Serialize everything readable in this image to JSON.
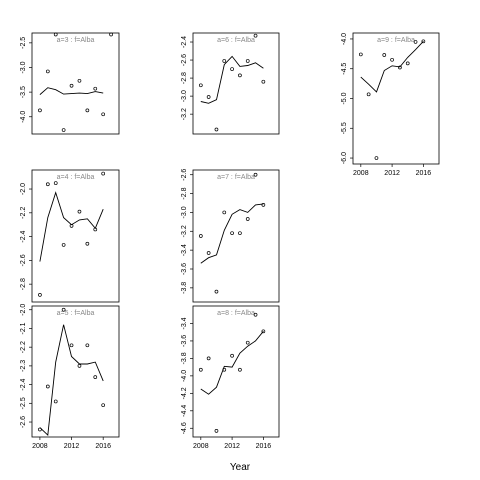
{
  "chart_data": {
    "type": "scatter",
    "xlabel": "Year",
    "panels": [
      {
        "title": "a=3 : f=Alba",
        "xlim": [
          2007,
          2018
        ],
        "ylim": [
          -4.35,
          -2.3
        ],
        "yticks": [
          "-2.5",
          "-3.0",
          "-3.5",
          "-4.0"
        ],
        "ytick_values": [
          -2.5,
          -3.0,
          -3.5,
          -4.0
        ],
        "xticks": [],
        "points": [
          [
            2008,
            -3.87
          ],
          [
            2009,
            -3.08
          ],
          [
            2010,
            -2.33
          ],
          [
            2011,
            -4.27
          ],
          [
            2012,
            -3.37
          ],
          [
            2013,
            -3.27
          ],
          [
            2014,
            -3.87
          ],
          [
            2015,
            -3.43
          ],
          [
            2016,
            -3.95
          ],
          [
            2017,
            -2.33
          ]
        ],
        "line": [
          [
            2008,
            -3.55
          ],
          [
            2009,
            -3.41
          ],
          [
            2010,
            -3.45
          ],
          [
            2011,
            -3.54
          ],
          [
            2012,
            -3.53
          ],
          [
            2013,
            -3.52
          ],
          [
            2014,
            -3.53
          ],
          [
            2015,
            -3.49
          ],
          [
            2016,
            -3.52
          ]
        ]
      },
      {
        "title": "a=6 : f=Alba",
        "xlim": [
          2007,
          2018
        ],
        "ylim": [
          -3.42,
          -2.3
        ],
        "yticks": [
          "-2.4",
          "-2.6",
          "-2.8",
          "-3.0",
          "-3.2"
        ],
        "ytick_values": [
          -2.4,
          -2.6,
          -2.8,
          -3.0,
          -3.2
        ],
        "xticks": [],
        "points": [
          [
            2008,
            -2.88
          ],
          [
            2009,
            -3.01
          ],
          [
            2010,
            -3.37
          ],
          [
            2011,
            -2.61
          ],
          [
            2012,
            -2.7
          ],
          [
            2013,
            -2.77
          ],
          [
            2014,
            -2.61
          ],
          [
            2015,
            -2.33
          ],
          [
            2016,
            -2.84
          ]
        ],
        "line": [
          [
            2008,
            -3.06
          ],
          [
            2009,
            -3.08
          ],
          [
            2010,
            -3.04
          ],
          [
            2011,
            -2.65
          ],
          [
            2012,
            -2.56
          ],
          [
            2013,
            -2.67
          ],
          [
            2014,
            -2.66
          ],
          [
            2015,
            -2.63
          ],
          [
            2016,
            -2.69
          ]
        ]
      },
      {
        "title": "a=9 : f=Alba",
        "xlim": [
          2007,
          2018
        ],
        "ylim": [
          -6.1,
          -3.9
        ],
        "yticks": [
          "-4.0",
          "-4.5",
          "-5.0",
          "-5.5",
          "-6.0"
        ],
        "ytick_values": [
          -4.0,
          -4.5,
          -5.0,
          -5.5,
          -6.0
        ],
        "xticks": [
          "2008",
          "2012",
          "2016"
        ],
        "xtick_values": [
          2008,
          2012,
          2016
        ],
        "points": [
          [
            2008,
            -4.26
          ],
          [
            2009,
            -4.93
          ],
          [
            2010,
            -6.0
          ],
          [
            2011,
            -4.27
          ],
          [
            2012,
            -4.35
          ],
          [
            2013,
            -4.48
          ],
          [
            2014,
            -4.41
          ],
          [
            2015,
            -4.05
          ],
          [
            2016,
            -4.04
          ]
        ],
        "line": [
          [
            2008,
            -4.64
          ],
          [
            2009,
            -4.76
          ],
          [
            2010,
            -4.89
          ],
          [
            2011,
            -4.53
          ],
          [
            2012,
            -4.45
          ],
          [
            2013,
            -4.47
          ],
          [
            2014,
            -4.31
          ],
          [
            2015,
            -4.18
          ],
          [
            2016,
            -4.04
          ]
        ]
      },
      {
        "title": "a=4 : f=Alba",
        "xlim": [
          2007,
          2018
        ],
        "ylim": [
          -2.95,
          -1.84
        ],
        "yticks": [
          "-2.0",
          "-2.2",
          "-2.4",
          "-2.6",
          "-2.8"
        ],
        "ytick_values": [
          -2.0,
          -2.2,
          -2.4,
          -2.6,
          -2.8
        ],
        "xticks": [],
        "points": [
          [
            2008,
            -2.89
          ],
          [
            2009,
            -1.96
          ],
          [
            2010,
            -1.95
          ],
          [
            2011,
            -2.47
          ],
          [
            2012,
            -2.31
          ],
          [
            2013,
            -2.19
          ],
          [
            2014,
            -2.46
          ],
          [
            2015,
            -2.34
          ],
          [
            2016,
            -1.87
          ]
        ],
        "line": [
          [
            2008,
            -2.61
          ],
          [
            2009,
            -2.24
          ],
          [
            2010,
            -2.03
          ],
          [
            2011,
            -2.24
          ],
          [
            2012,
            -2.3
          ],
          [
            2013,
            -2.26
          ],
          [
            2014,
            -2.25
          ],
          [
            2015,
            -2.33
          ],
          [
            2016,
            -2.17
          ]
        ]
      },
      {
        "title": "a=7 : f=Alba",
        "xlim": [
          2007,
          2018
        ],
        "ylim": [
          -3.95,
          -2.55
        ],
        "yticks": [
          "-2.6",
          "-2.8",
          "-3.0",
          "-3.2",
          "-3.4",
          "-3.6",
          "-3.8"
        ],
        "ytick_values": [
          -2.6,
          -2.8,
          -3.0,
          -3.2,
          -3.4,
          -3.6,
          -3.8
        ],
        "xticks": [],
        "points": [
          [
            2008,
            -3.25
          ],
          [
            2009,
            -3.43
          ],
          [
            2010,
            -3.84
          ],
          [
            2011,
            -3.0
          ],
          [
            2012,
            -3.22
          ],
          [
            2013,
            -3.22
          ],
          [
            2014,
            -3.07
          ],
          [
            2015,
            -2.6
          ],
          [
            2016,
            -2.92
          ]
        ],
        "line": [
          [
            2008,
            -3.54
          ],
          [
            2009,
            -3.48
          ],
          [
            2010,
            -3.45
          ],
          [
            2011,
            -3.19
          ],
          [
            2012,
            -3.02
          ],
          [
            2013,
            -2.97
          ],
          [
            2014,
            -3.0
          ],
          [
            2015,
            -2.92
          ],
          [
            2016,
            -2.91
          ]
        ]
      },
      {
        "title": "a=5 : f=Alba",
        "xlim": [
          2007,
          2018
        ],
        "ylim": [
          -2.68,
          -1.98
        ],
        "yticks": [
          "-2.0",
          "-2.1",
          "-2.2",
          "-2.3",
          "-2.4",
          "-2.5",
          "-2.6"
        ],
        "ytick_values": [
          -2.0,
          -2.1,
          -2.2,
          -2.3,
          -2.4,
          -2.5,
          -2.6
        ],
        "xticks": [
          "2008",
          "2012",
          "2016"
        ],
        "xtick_values": [
          2008,
          2012,
          2016
        ],
        "points": [
          [
            2008,
            -2.64
          ],
          [
            2009,
            -2.41
          ],
          [
            2010,
            -2.49
          ],
          [
            2011,
            -2.0
          ],
          [
            2012,
            -2.19
          ],
          [
            2013,
            -2.3
          ],
          [
            2014,
            -2.19
          ],
          [
            2015,
            -2.36
          ],
          [
            2016,
            -2.51
          ]
        ],
        "line": [
          [
            2008,
            -2.63
          ],
          [
            2009,
            -2.67
          ],
          [
            2010,
            -2.28
          ],
          [
            2011,
            -2.08
          ],
          [
            2012,
            -2.25
          ],
          [
            2013,
            -2.29
          ],
          [
            2014,
            -2.29
          ],
          [
            2015,
            -2.28
          ],
          [
            2016,
            -2.38
          ]
        ]
      },
      {
        "title": "a=8 : f=Alba",
        "xlim": [
          2007,
          2018
        ],
        "ylim": [
          -4.7,
          -3.2
        ],
        "yticks": [
          "-3.4",
          "-3.6",
          "-3.8",
          "-4.0",
          "-4.2",
          "-4.4",
          "-4.6"
        ],
        "ytick_values": [
          -3.4,
          -3.6,
          -3.8,
          -4.0,
          -4.2,
          -4.4,
          -4.6
        ],
        "xticks": [
          "2008",
          "2012",
          "2016"
        ],
        "xtick_values": [
          2008,
          2012,
          2016
        ],
        "points": [
          [
            2008,
            -3.93
          ],
          [
            2009,
            -3.8
          ],
          [
            2010,
            -4.63
          ],
          [
            2011,
            -3.93
          ],
          [
            2012,
            -3.77
          ],
          [
            2013,
            -3.93
          ],
          [
            2014,
            -3.62
          ],
          [
            2015,
            -3.3
          ],
          [
            2016,
            -3.49
          ]
        ],
        "line": [
          [
            2008,
            -4.15
          ],
          [
            2009,
            -4.21
          ],
          [
            2010,
            -4.13
          ],
          [
            2011,
            -3.89
          ],
          [
            2012,
            -3.9
          ],
          [
            2013,
            -3.74
          ],
          [
            2014,
            -3.66
          ],
          [
            2015,
            -3.6
          ],
          [
            2016,
            -3.49
          ]
        ]
      }
    ]
  }
}
